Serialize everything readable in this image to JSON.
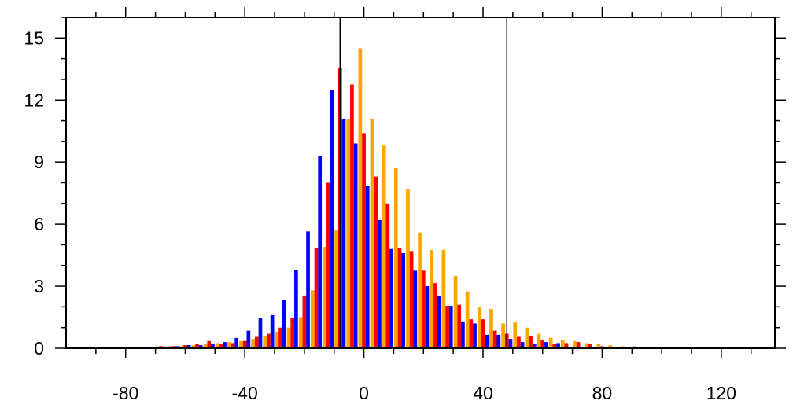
{
  "chart_data": {
    "type": "bar",
    "title": "",
    "xlabel": "",
    "ylabel": "",
    "xlim": [
      -100,
      138
    ],
    "ylim": [
      0,
      16
    ],
    "bin_width": 4,
    "grid": false,
    "x_ticks": [
      -80,
      -40,
      0,
      40,
      80,
      120
    ],
    "y_ticks": [
      0,
      3,
      6,
      9,
      12,
      15
    ],
    "reference_lines_x": [
      -8,
      48
    ],
    "x": [
      -72,
      -68,
      -64,
      -60,
      -56,
      -52,
      -48,
      -44,
      -40,
      -36,
      -32,
      -28,
      -24,
      -20,
      -16,
      -12,
      -8,
      -4,
      0,
      4,
      8,
      12,
      16,
      20,
      24,
      28,
      32,
      36,
      40,
      44,
      48,
      52,
      56,
      60,
      64,
      68,
      72,
      76,
      80,
      84,
      88,
      92,
      96,
      100,
      104,
      108,
      112,
      116,
      120,
      124,
      128,
      132,
      136
    ],
    "series": [
      {
        "color": "#FFA500",
        "values": [
          0.05,
          0.1,
          0.1,
          0.1,
          0.15,
          0.2,
          0.25,
          0.3,
          0.35,
          0.45,
          0.6,
          0.8,
          1.0,
          1.5,
          2.8,
          4.9,
          5.7,
          11.1,
          14.5,
          11.1,
          9.8,
          8.7,
          7.7,
          5.6,
          4.75,
          4.75,
          3.5,
          2.75,
          2.0,
          1.9,
          1.2,
          1.25,
          1.0,
          0.7,
          0.5,
          0.4,
          0.35,
          0.25,
          0.2,
          0.15,
          0.1,
          0.1,
          0.05,
          0.05,
          0.05,
          0.05,
          0.05,
          0.05,
          0.05,
          0.05,
          0.05,
          0.05,
          0.05
        ]
      },
      {
        "color": "#FF0000",
        "values": [
          0.05,
          0.1,
          0.1,
          0.15,
          0.2,
          0.35,
          0.2,
          0.25,
          0.35,
          0.55,
          0.7,
          1.0,
          1.45,
          2.55,
          4.85,
          8.0,
          13.55,
          12.75,
          10.4,
          8.3,
          7.0,
          4.85,
          4.7,
          3.75,
          3.15,
          2.05,
          2.1,
          1.4,
          1.4,
          0.85,
          0.7,
          0.55,
          0.6,
          0.4,
          0.2,
          0.25,
          0.3,
          0.2,
          0.1,
          0.05,
          0.05,
          0.05,
          0.05,
          0.05,
          0.05,
          0.05,
          0.05,
          0.05,
          0.05,
          0.05,
          0.05,
          0.05,
          0.05
        ]
      },
      {
        "color": "#0000FF",
        "values": [
          0.05,
          0.05,
          0.1,
          0.15,
          0.15,
          0.2,
          0.3,
          0.5,
          0.85,
          1.45,
          1.6,
          2.35,
          3.8,
          5.65,
          9.3,
          12.5,
          11.1,
          9.9,
          7.85,
          6.2,
          4.8,
          4.6,
          3.75,
          3.0,
          2.55,
          2.05,
          1.3,
          1.2,
          0.65,
          0.65,
          0.45,
          0.3,
          0.2,
          0.3,
          0.25,
          0.05,
          0.05,
          0.05,
          0.05,
          0.05,
          0.05,
          0.05,
          0.05,
          0.05,
          0.05,
          0.05,
          0.05,
          0.05,
          0.05,
          0.05,
          0.05,
          0.05,
          0.05
        ]
      }
    ]
  }
}
